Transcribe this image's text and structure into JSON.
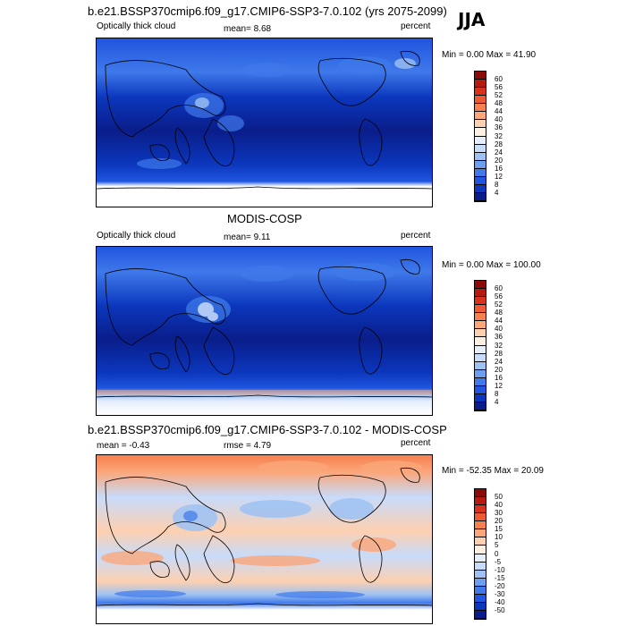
{
  "season": "JJA",
  "panels": [
    {
      "title": "b.e21.BSSP370cmip6.f09_g17.CMIP6-SSP3-7.0.102 (yrs 2075-2099)",
      "left_label": "Optically thick cloud",
      "stat1": "mean=  8.68",
      "stat2": "",
      "units": "percent",
      "minmax": "Min =   0.00 Max =  41.90",
      "colorbar_ticks": [
        "60",
        "56",
        "52",
        "48",
        "44",
        "40",
        "36",
        "32",
        "28",
        "24",
        "20",
        "16",
        "12",
        "8",
        "4"
      ],
      "colorbar_colors": [
        "#8b0a0a",
        "#b51b10",
        "#d8321d",
        "#ee5a32",
        "#f7804f",
        "#fba77a",
        "#fdd0b0",
        "#fdf0e3",
        "#e6eefc",
        "#c7dbfa",
        "#9ec2f3",
        "#6d9ff0",
        "#3f79ea",
        "#1f55df",
        "#0b37bd",
        "#0a1d8a"
      ]
    },
    {
      "title": "MODIS-COSP",
      "left_label": "Optically thick cloud",
      "stat1": "mean=  9.11",
      "stat2": "",
      "units": "percent",
      "minmax": "Min =   0.00 Max = 100.00",
      "colorbar_ticks": [
        "60",
        "56",
        "52",
        "48",
        "44",
        "40",
        "36",
        "32",
        "28",
        "24",
        "20",
        "16",
        "12",
        "8",
        "4"
      ],
      "colorbar_colors": [
        "#8b0a0a",
        "#b51b10",
        "#d8321d",
        "#ee5a32",
        "#f7804f",
        "#fba77a",
        "#fdd0b0",
        "#fdf0e3",
        "#e6eefc",
        "#c7dbfa",
        "#9ec2f3",
        "#6d9ff0",
        "#3f79ea",
        "#1f55df",
        "#0b37bd",
        "#0a1d8a"
      ]
    },
    {
      "title": "b.e21.BSSP370cmip6.f09_g17.CMIP6-SSP3-7.0.102 - MODIS-COSP",
      "left_label": "mean =  -0.43",
      "stat1": "rmse =   4.79",
      "stat2": "",
      "units": "percent",
      "minmax": "Min = -52.35 Max =  20.09",
      "colorbar_ticks": [
        "50",
        "40",
        "30",
        "20",
        "15",
        "10",
        "5",
        "0",
        "-5",
        "-10",
        "-15",
        "-20",
        "-30",
        "-40",
        "-50"
      ],
      "colorbar_colors": [
        "#8b0a0a",
        "#b51b10",
        "#d8321d",
        "#ee5a32",
        "#f7804f",
        "#fba77a",
        "#fdd0b0",
        "#fdf0e3",
        "#e6eefc",
        "#c7dbfa",
        "#9ec2f3",
        "#6d9ff0",
        "#3f79ea",
        "#1f55df",
        "#0b37bd",
        "#0a1d8a"
      ]
    }
  ]
}
